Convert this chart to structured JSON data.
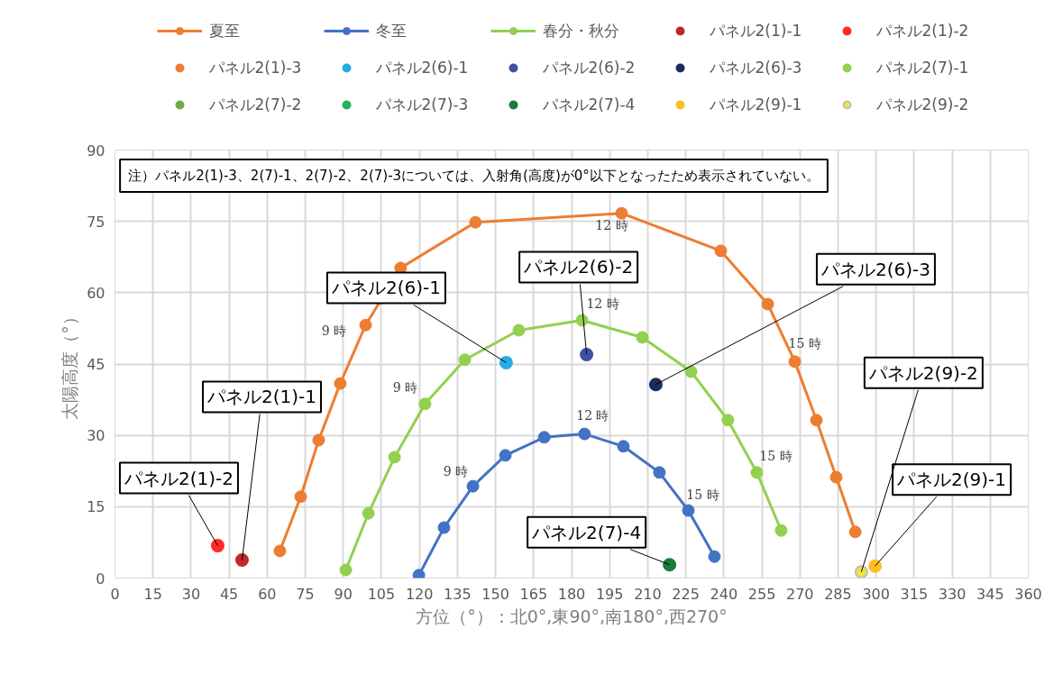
{
  "chart_data": {
    "type": "scatter",
    "xlabel": "方位（°）：北0°,東90°,南180°,西270°",
    "ylabel": "太陽高度（°）",
    "xlim": [
      0,
      360
    ],
    "xticks": [
      0,
      15,
      30,
      45,
      60,
      75,
      90,
      105,
      120,
      135,
      150,
      165,
      180,
      195,
      210,
      225,
      240,
      255,
      270,
      285,
      300,
      315,
      330,
      345,
      360
    ],
    "ylim": [
      0,
      90
    ],
    "yticks": [
      0,
      15,
      30,
      45,
      60,
      75,
      90
    ],
    "grid": true,
    "legend": "top",
    "marker": "circle",
    "series": [
      {
        "name": "夏至",
        "type": "line",
        "color": "#ed7d31",
        "x": [
          65.0,
          73.2,
          80.3,
          88.8,
          98.8,
          112.6,
          142.1,
          199.7,
          238.8,
          257.3,
          268.0,
          276.5,
          284.3,
          291.8
        ],
        "values": [
          5.7,
          17.1,
          29.0,
          40.9,
          53.2,
          65.2,
          74.8,
          76.7,
          68.8,
          57.6,
          45.5,
          33.2,
          21.2,
          9.7
        ]
      },
      {
        "name": "冬至",
        "type": "line",
        "color": "#4472c4",
        "x": [
          119.8,
          129.7,
          141.1,
          153.9,
          169.2,
          185.1,
          200.4,
          214.6,
          226.0,
          236.3
        ],
        "values": [
          0.6,
          10.6,
          19.3,
          25.8,
          29.6,
          30.3,
          27.7,
          22.2,
          14.2,
          4.5
        ]
      },
      {
        "name": "春分・秋分",
        "type": "line",
        "color": "#92d050",
        "x": [
          91.0,
          99.9,
          110.2,
          122.2,
          137.9,
          159.2,
          184.1,
          207.9,
          227.1,
          241.6,
          253.0,
          262.6
        ],
        "values": [
          1.7,
          13.6,
          25.4,
          36.6,
          45.9,
          52.1,
          54.2,
          50.6,
          43.4,
          33.2,
          22.2,
          10.0
        ]
      },
      {
        "name": "パネル2(1)-1",
        "color": "#c0272d",
        "x": [
          50.1
        ],
        "values": [
          3.8
        ]
      },
      {
        "name": "パネル2(1)-2",
        "color": "#ff2a2a",
        "x": [
          40.5
        ],
        "values": [
          6.8
        ]
      },
      {
        "name": "パネル2(1)-3",
        "color": "#ed7d31"
      },
      {
        "name": "パネル2(6)-1",
        "color": "#29abe2",
        "x": [
          154.2
        ],
        "values": [
          45.3
        ]
      },
      {
        "name": "パネル2(6)-2",
        "color": "#3f51a5",
        "x": [
          185.9
        ],
        "values": [
          47.0
        ]
      },
      {
        "name": "パネル2(6)-3",
        "color": "#1f2a5c",
        "x": [
          213.2
        ],
        "values": [
          40.7
        ]
      },
      {
        "name": "パネル2(7)-1",
        "color": "#92d050"
      },
      {
        "name": "パネル2(7)-2",
        "color": "#70ad47"
      },
      {
        "name": "パネル2(7)-3",
        "color": "#27b05a"
      },
      {
        "name": "パネル2(7)-4",
        "color": "#1e7b3a",
        "x": [
          218.6
        ],
        "values": [
          2.8
        ]
      },
      {
        "name": "パネル2(9)-1",
        "color": "#fbbf24",
        "x": [
          299.6
        ],
        "values": [
          2.5
        ]
      },
      {
        "name": "パネル2(9)-2",
        "color": "#f0e442",
        "x": [
          294.2
        ],
        "values": [
          1.3
        ]
      }
    ],
    "annotations": [
      {
        "text": "9 時",
        "x": 98.8,
        "y": 53.2
      },
      {
        "text": "12 時",
        "x": 199.7,
        "y": 76.7
      },
      {
        "text": "15 時",
        "x": 268.0,
        "y": 45.5
      },
      {
        "text": "9 時",
        "x": 122.2,
        "y": 36.6
      },
      {
        "text": "12 時",
        "x": 184.1,
        "y": 54.2
      },
      {
        "text": "15 時",
        "x": 253.0,
        "y": 22.2
      },
      {
        "text": "9 時",
        "x": 141.1,
        "y": 19.3
      },
      {
        "text": "12 時",
        "x": 185.1,
        "y": 30.3
      },
      {
        "text": "15 時",
        "x": 226.0,
        "y": 14.2
      },
      {
        "text": "パネル2(1)-1",
        "x": 50.1,
        "y": 3.8
      },
      {
        "text": "パネル2(1)-2",
        "x": 40.5,
        "y": 6.8
      },
      {
        "text": "パネル2(6)-1",
        "x": 154.2,
        "y": 45.3
      },
      {
        "text": "パネル2(6)-2",
        "x": 185.9,
        "y": 47.0
      },
      {
        "text": "パネル2(6)-3",
        "x": 213.2,
        "y": 40.7
      },
      {
        "text": "パネル2(7)-4",
        "x": 218.6,
        "y": 2.8
      },
      {
        "text": "パネル2(9)-1",
        "x": 299.6,
        "y": 2.5
      },
      {
        "text": "パネル2(9)-2",
        "x": 294.2,
        "y": 1.3
      },
      "注）パネル2(1)-3、2(7)-1、2(7)-2、2(7)-3については、入射角(高度)が0°以下となったため表示されていない。"
    ]
  }
}
